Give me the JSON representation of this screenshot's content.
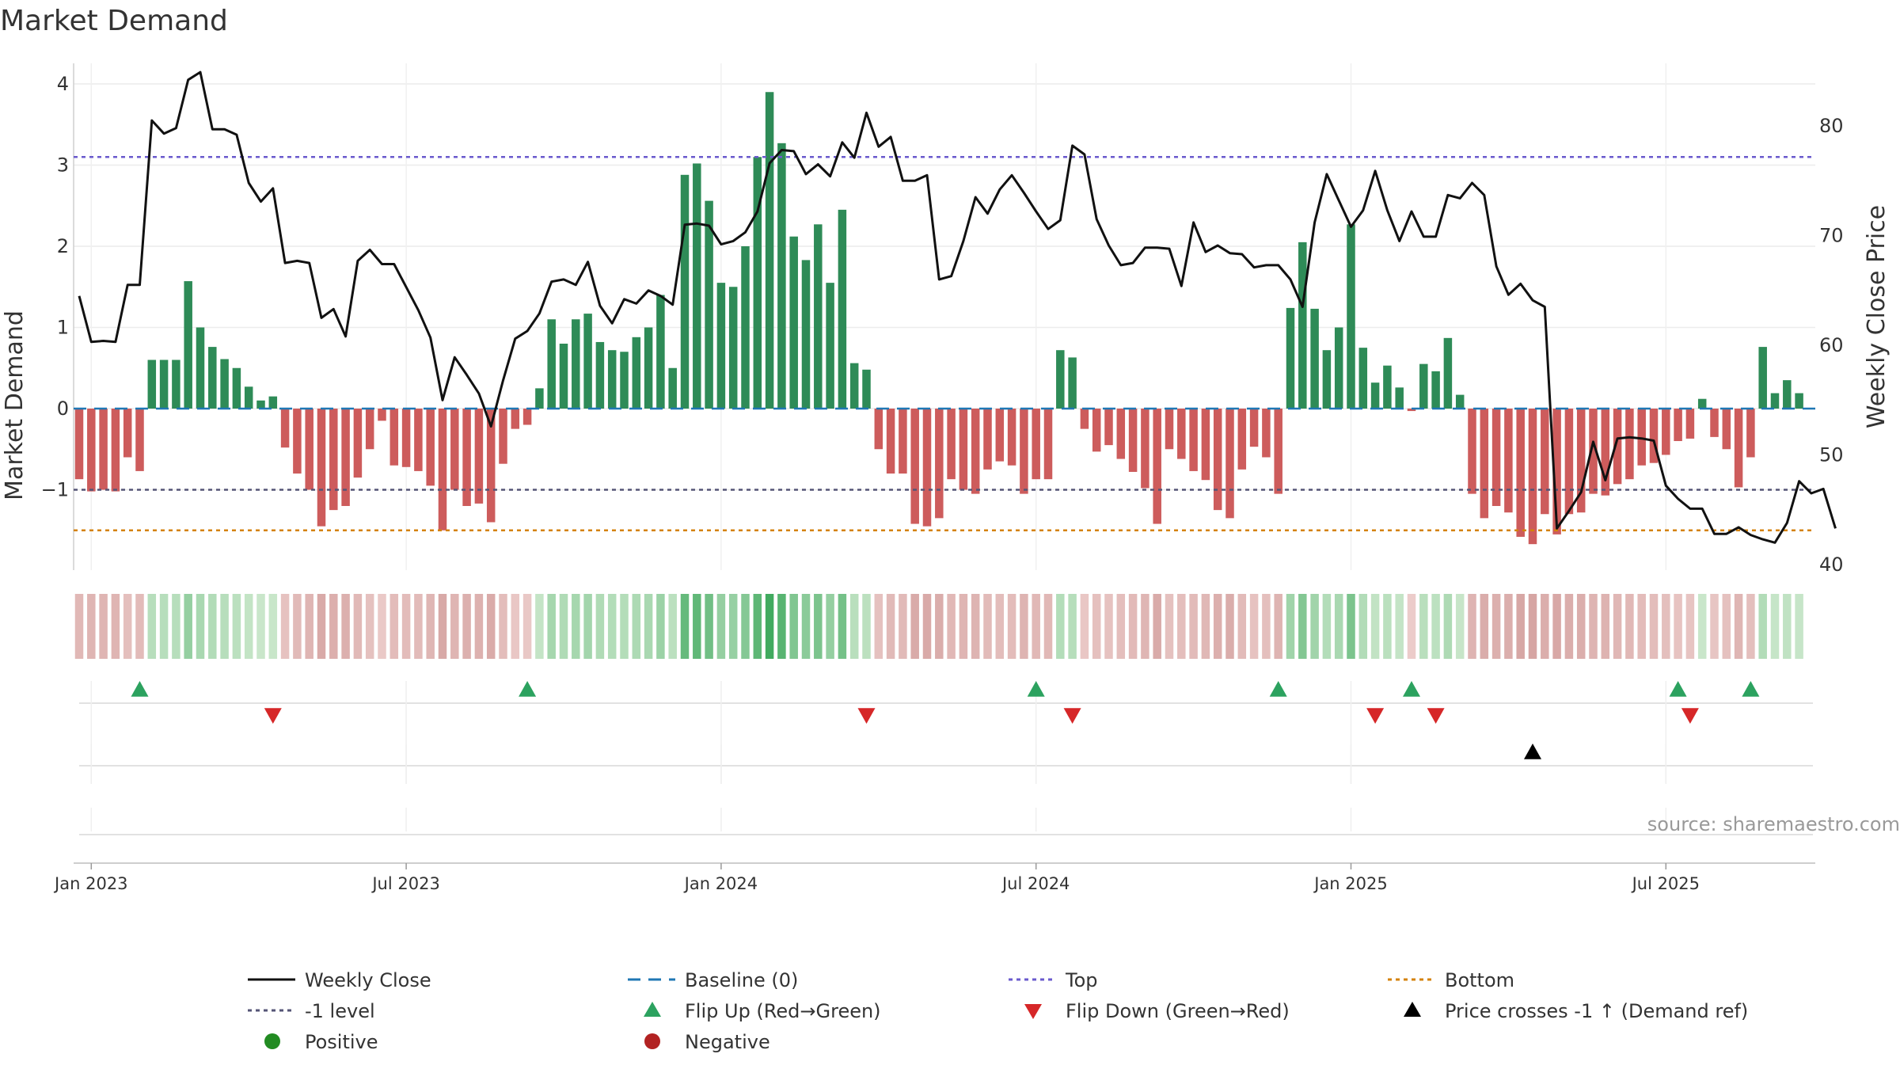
{
  "chart_data": {
    "type": "bar+line",
    "title": "Market Demand",
    "ylabel_left": "Market Demand",
    "ylabel_right": "Weekly Close Price",
    "ylim_left": [
      -2.0,
      4.25
    ],
    "ylim_right": [
      40,
      84
    ],
    "yticks_left": [
      -1,
      0,
      1,
      2,
      3,
      4
    ],
    "ytick_labels_left": [
      "−1",
      "0",
      "1",
      "2",
      "3",
      "4"
    ],
    "yticks_right": [
      40,
      50,
      60,
      70,
      80
    ],
    "ytick_labels_right": [
      "40",
      "50",
      "60",
      "70",
      "80"
    ],
    "x_ticks": [
      "Jan 2023",
      "Jul 2023",
      "Jan 2024",
      "Jul 2024",
      "Jan 2025",
      "Jul 2025"
    ],
    "x_tick_weeks": [
      1,
      27,
      53,
      79,
      105,
      131
    ],
    "reference_lines": {
      "top": 3.1,
      "minus_one": -1.0,
      "bottom": -1.5,
      "baseline": 0
    },
    "demand": [
      -0.87,
      -1.02,
      -1.0,
      -1.02,
      -0.6,
      -0.77,
      0.6,
      0.6,
      0.6,
      1.57,
      1.0,
      0.76,
      0.61,
      0.5,
      0.27,
      0.1,
      0.15,
      -0.48,
      -0.8,
      -1.0,
      -1.45,
      -1.25,
      -1.2,
      -0.85,
      -0.5,
      -0.15,
      -0.7,
      -0.72,
      -0.77,
      -0.95,
      -1.5,
      -1.0,
      -1.2,
      -1.17,
      -1.4,
      -0.68,
      -0.25,
      -0.2,
      0.25,
      1.1,
      0.8,
      1.1,
      1.17,
      0.82,
      0.72,
      0.7,
      0.88,
      1.0,
      1.4,
      0.5,
      2.88,
      3.02,
      2.56,
      1.55,
      1.5,
      2.0,
      3.1,
      3.9,
      3.27,
      2.12,
      1.83,
      2.27,
      1.55,
      2.45,
      0.56,
      0.48,
      -0.5,
      -0.8,
      -0.8,
      -1.42,
      -1.45,
      -1.35,
      -0.87,
      -1.0,
      -1.05,
      -0.75,
      -0.65,
      -0.7,
      -1.05,
      -0.87,
      -0.87,
      0.72,
      0.63,
      -0.25,
      -0.53,
      -0.45,
      -0.62,
      -0.78,
      -0.98,
      -1.42,
      -0.5,
      -0.62,
      -0.77,
      -0.88,
      -1.25,
      -1.35,
      -0.75,
      -0.47,
      -0.6,
      -1.05,
      1.24,
      2.05,
      1.23,
      0.72,
      1.0,
      2.27,
      0.75,
      0.32,
      0.53,
      0.26,
      -0.03,
      0.55,
      0.46,
      0.87,
      0.17,
      -1.05,
      -1.35,
      -1.2,
      -1.28,
      -1.58,
      -1.67,
      -1.3,
      -1.55,
      -1.3,
      -1.28,
      -1.05,
      -1.07,
      -0.93,
      -0.87,
      -0.7,
      -0.67,
      -0.57,
      -0.4,
      -0.37,
      0.12,
      -0.35,
      -0.5,
      -0.97,
      -0.6,
      0.76,
      0.19,
      0.35,
      0.19
    ],
    "close": [
      64.5,
      60.3,
      60.4,
      60.3,
      65.5,
      65.5,
      80.5,
      79.3,
      79.8,
      84.2,
      84.9,
      79.7,
      79.7,
      79.2,
      74.8,
      73.1,
      74.3,
      67.5,
      67.7,
      67.5,
      62.5,
      63.3,
      60.8,
      67.7,
      68.7,
      67.4,
      67.4,
      65.3,
      63.2,
      60.7,
      55,
      58.9,
      57.3,
      55.6,
      52.6,
      56.8,
      60.6,
      61.3,
      62.9,
      65.8,
      66,
      65.5,
      67.6,
      63.6,
      62,
      64.2,
      63.8,
      65,
      64.5,
      63.7,
      71,
      71.1,
      70.9,
      69.2,
      69.5,
      70.3,
      72.2,
      76.6,
      77.8,
      77.7,
      75.6,
      76.5,
      75.4,
      78.5,
      77.1,
      81.2,
      78.1,
      79,
      75,
      75,
      75.5,
      66,
      66.3,
      69.5,
      73.5,
      72,
      74.2,
      75.5,
      73.9,
      72.2,
      70.6,
      71.4,
      78.2,
      77.4,
      71.5,
      69.1,
      67.3,
      67.5,
      68.9,
      68.9,
      68.8,
      65.4,
      71.2,
      68.5,
      69.1,
      68.4,
      68.3,
      67.1,
      67.3,
      67.3,
      66,
      63.5,
      71.2,
      75.6,
      73.2,
      70.8,
      72.3,
      75.9,
      72.3,
      69.5,
      72.2,
      69.9,
      69.9,
      73.7,
      73.4,
      74.8,
      73.7,
      67.2,
      64.6,
      65.6,
      64.1,
      63.5,
      43.3,
      44.9,
      46.6,
      51.2,
      47.7,
      51.5,
      51.6,
      51.5,
      51.3,
      47.2,
      46,
      45.1,
      45.1,
      42.8,
      42.8,
      43.4,
      42.7,
      42.3,
      42,
      43.8,
      47.6,
      46.5,
      46.9,
      43.3
    ],
    "flip_up_weeks": [
      5,
      37,
      79,
      99,
      110,
      132,
      138
    ],
    "flip_down_weeks": [
      16,
      65,
      82,
      107,
      112,
      133
    ],
    "price_cross_weeks": [
      120
    ],
    "source": "source: sharemaestro.com",
    "legend": [
      {
        "label": "Weekly Close",
        "type": "line",
        "color": "#111111"
      },
      {
        "label": "Baseline (0)",
        "type": "dash",
        "color": "#1f77b4"
      },
      {
        "label": "Top",
        "type": "dot",
        "color": "#6a5acd"
      },
      {
        "label": "Bottom",
        "type": "dot",
        "color": "#d4820a"
      },
      {
        "label": "-1 level",
        "type": "dot",
        "color": "#555577"
      },
      {
        "label": "Flip Up (Red→Green)",
        "type": "tri-up",
        "color": "#2ca25f"
      },
      {
        "label": "Flip Down (Green→Red)",
        "type": "tri-down",
        "color": "#d62728"
      },
      {
        "label": "Price crosses -1 ↑ (Demand ref)",
        "type": "tri-up",
        "color": "#000000"
      },
      {
        "label": "Positive",
        "type": "circle",
        "color": "#228b22"
      },
      {
        "label": "Negative",
        "type": "circle",
        "color": "#b22222"
      }
    ],
    "colors": {
      "positive_bar": "#2e8b57",
      "negative_bar": "#cd5c5c",
      "price": "#111111"
    }
  }
}
